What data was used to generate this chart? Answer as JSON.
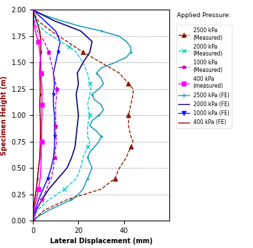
{
  "title": "Applied Pressure:",
  "xlabel": "Lateral Displacement (mm)",
  "ylabel": "Specimen Height (m)",
  "xlim": [
    0,
    60
  ],
  "ylim": [
    0,
    2
  ],
  "xticks": [
    0,
    20,
    40
  ],
  "yticks": [
    0,
    0.25,
    0.5,
    0.75,
    1.0,
    1.25,
    1.5,
    1.75,
    2.0
  ],
  "colors": {
    "measured_2500": "#8B1A00",
    "measured_2000": "#00CCCC",
    "measured_1000": "#CC00CC",
    "measured_400": "#FF00FF",
    "fe_2500": "#1E9EC0",
    "fe_2000": "#000080",
    "fe_1000": "#1A1AFF",
    "fe_400": "#8B0000"
  },
  "legend_labels": [
    "2500 kPa\n(Measured)",
    "2000 kPa\n(Measured)",
    "1000 kPa\n(Measured)",
    "400 kPa\n(measured)",
    "2500 kPa (FE)",
    "2000 kPa (FE)",
    "1000 kPa (FE)",
    "400 kPa (FE)"
  ],
  "measured_2500_h": [
    2.0,
    1.9,
    1.8,
    1.7,
    1.6,
    1.55,
    1.5,
    1.4,
    1.3,
    1.25,
    1.2,
    1.1,
    1.0,
    0.9,
    0.8,
    0.75,
    0.7,
    0.6,
    0.5,
    0.45,
    0.4,
    0.3,
    0.2,
    0.1,
    0.0
  ],
  "measured_2500_d": [
    0.0,
    2,
    8,
    15,
    22,
    26,
    30,
    38,
    42,
    44,
    44,
    43,
    42,
    42,
    43,
    44,
    43,
    41,
    38,
    37,
    36,
    30,
    15,
    5,
    0.0
  ],
  "measured_2000_h": [
    2.0,
    1.9,
    1.8,
    1.7,
    1.65,
    1.6,
    1.5,
    1.4,
    1.3,
    1.25,
    1.2,
    1.1,
    1.0,
    0.9,
    0.8,
    0.75,
    0.7,
    0.6,
    0.5,
    0.4,
    0.3,
    0.2,
    0.1,
    0.0
  ],
  "measured_2000_d": [
    0.0,
    1,
    5,
    12,
    16,
    19,
    22,
    24,
    25,
    25.5,
    25,
    24,
    25,
    24,
    24,
    25,
    24,
    22,
    21,
    19,
    14,
    7,
    2,
    0.0
  ],
  "measured_1000_h": [
    2.0,
    1.9,
    1.8,
    1.7,
    1.6,
    1.5,
    1.4,
    1.3,
    1.25,
    1.2,
    1.1,
    1.0,
    0.9,
    0.8,
    0.75,
    0.7,
    0.6,
    0.5,
    0.4,
    0.3,
    0.2,
    0.1,
    0.0
  ],
  "measured_1000_d": [
    0.0,
    0.5,
    2,
    5,
    7,
    8,
    9,
    10,
    10.5,
    10.5,
    10,
    10,
    10,
    10,
    10.5,
    10,
    9.5,
    9,
    8,
    6,
    4,
    1.5,
    0.0
  ],
  "measured_400_h": [
    2.0,
    1.9,
    1.8,
    1.7,
    1.6,
    1.5,
    1.4,
    1.3,
    1.25,
    1.1,
    1.0,
    0.9,
    0.75,
    0.5,
    0.4,
    0.3,
    0.2,
    0.1,
    0.0
  ],
  "measured_400_d": [
    0.0,
    0.3,
    1,
    2.5,
    3,
    3.5,
    3.5,
    3.8,
    4,
    4,
    4,
    3.8,
    3.8,
    3.5,
    3.2,
    2.5,
    1.5,
    0.5,
    0.0
  ],
  "fe_2500_h": [
    0.0,
    0.05,
    0.1,
    0.15,
    0.2,
    0.25,
    0.3,
    0.35,
    0.4,
    0.45,
    0.5,
    0.55,
    0.6,
    0.65,
    0.7,
    0.75,
    0.8,
    0.85,
    0.9,
    0.95,
    1.0,
    1.05,
    1.1,
    1.15,
    1.2,
    1.25,
    1.3,
    1.35,
    1.4,
    1.45,
    1.5,
    1.55,
    1.6,
    1.65,
    1.7,
    1.75,
    1.8,
    1.85,
    1.9,
    1.95,
    2.0
  ],
  "fe_2500_d": [
    0.0,
    3,
    7,
    12,
    17,
    20,
    22,
    23,
    24,
    25,
    26,
    25,
    24,
    25,
    27,
    29,
    30,
    28,
    25,
    26,
    29,
    31,
    30,
    27,
    26,
    29,
    31,
    30,
    28,
    30,
    36,
    41,
    43,
    43,
    41,
    38,
    30,
    20,
    12,
    5,
    0.0
  ],
  "fe_2000_h": [
    0.0,
    0.1,
    0.2,
    0.3,
    0.4,
    0.5,
    0.6,
    0.7,
    0.8,
    0.9,
    1.0,
    1.1,
    1.2,
    1.3,
    1.4,
    1.5,
    1.6,
    1.7,
    1.8,
    1.9,
    2.0
  ],
  "fe_2000_d": [
    0.0,
    1.5,
    4,
    7,
    11,
    15,
    17,
    18.5,
    19,
    19.5,
    20,
    19.5,
    19,
    20,
    19.5,
    22,
    25,
    26,
    21,
    9,
    0.0
  ],
  "fe_1000_h": [
    0.0,
    0.1,
    0.2,
    0.3,
    0.4,
    0.5,
    0.6,
    0.7,
    0.8,
    0.9,
    1.0,
    1.1,
    1.2,
    1.3,
    1.4,
    1.5,
    1.6,
    1.7,
    1.8,
    1.9,
    2.0
  ],
  "fe_1000_d": [
    0.0,
    1,
    2.5,
    4.5,
    6.5,
    8,
    9,
    9.5,
    9.5,
    9.5,
    9.5,
    9,
    9,
    9.5,
    9,
    10,
    11,
    12,
    10,
    5,
    0.0
  ],
  "fe_400_h": [
    0.0,
    0.1,
    0.2,
    0.3,
    0.4,
    0.5,
    0.6,
    0.7,
    0.8,
    0.9,
    1.0,
    1.1,
    1.2,
    1.3,
    1.4,
    1.5,
    1.6,
    1.7,
    1.8,
    1.9,
    2.0
  ],
  "fe_400_d": [
    0.0,
    0.3,
    0.8,
    1.5,
    2,
    2.5,
    3,
    3.2,
    3.3,
    3.3,
    3.2,
    3.0,
    3.2,
    3.2,
    3.0,
    3.2,
    3.5,
    3.5,
    3.0,
    1.5,
    0.0
  ]
}
